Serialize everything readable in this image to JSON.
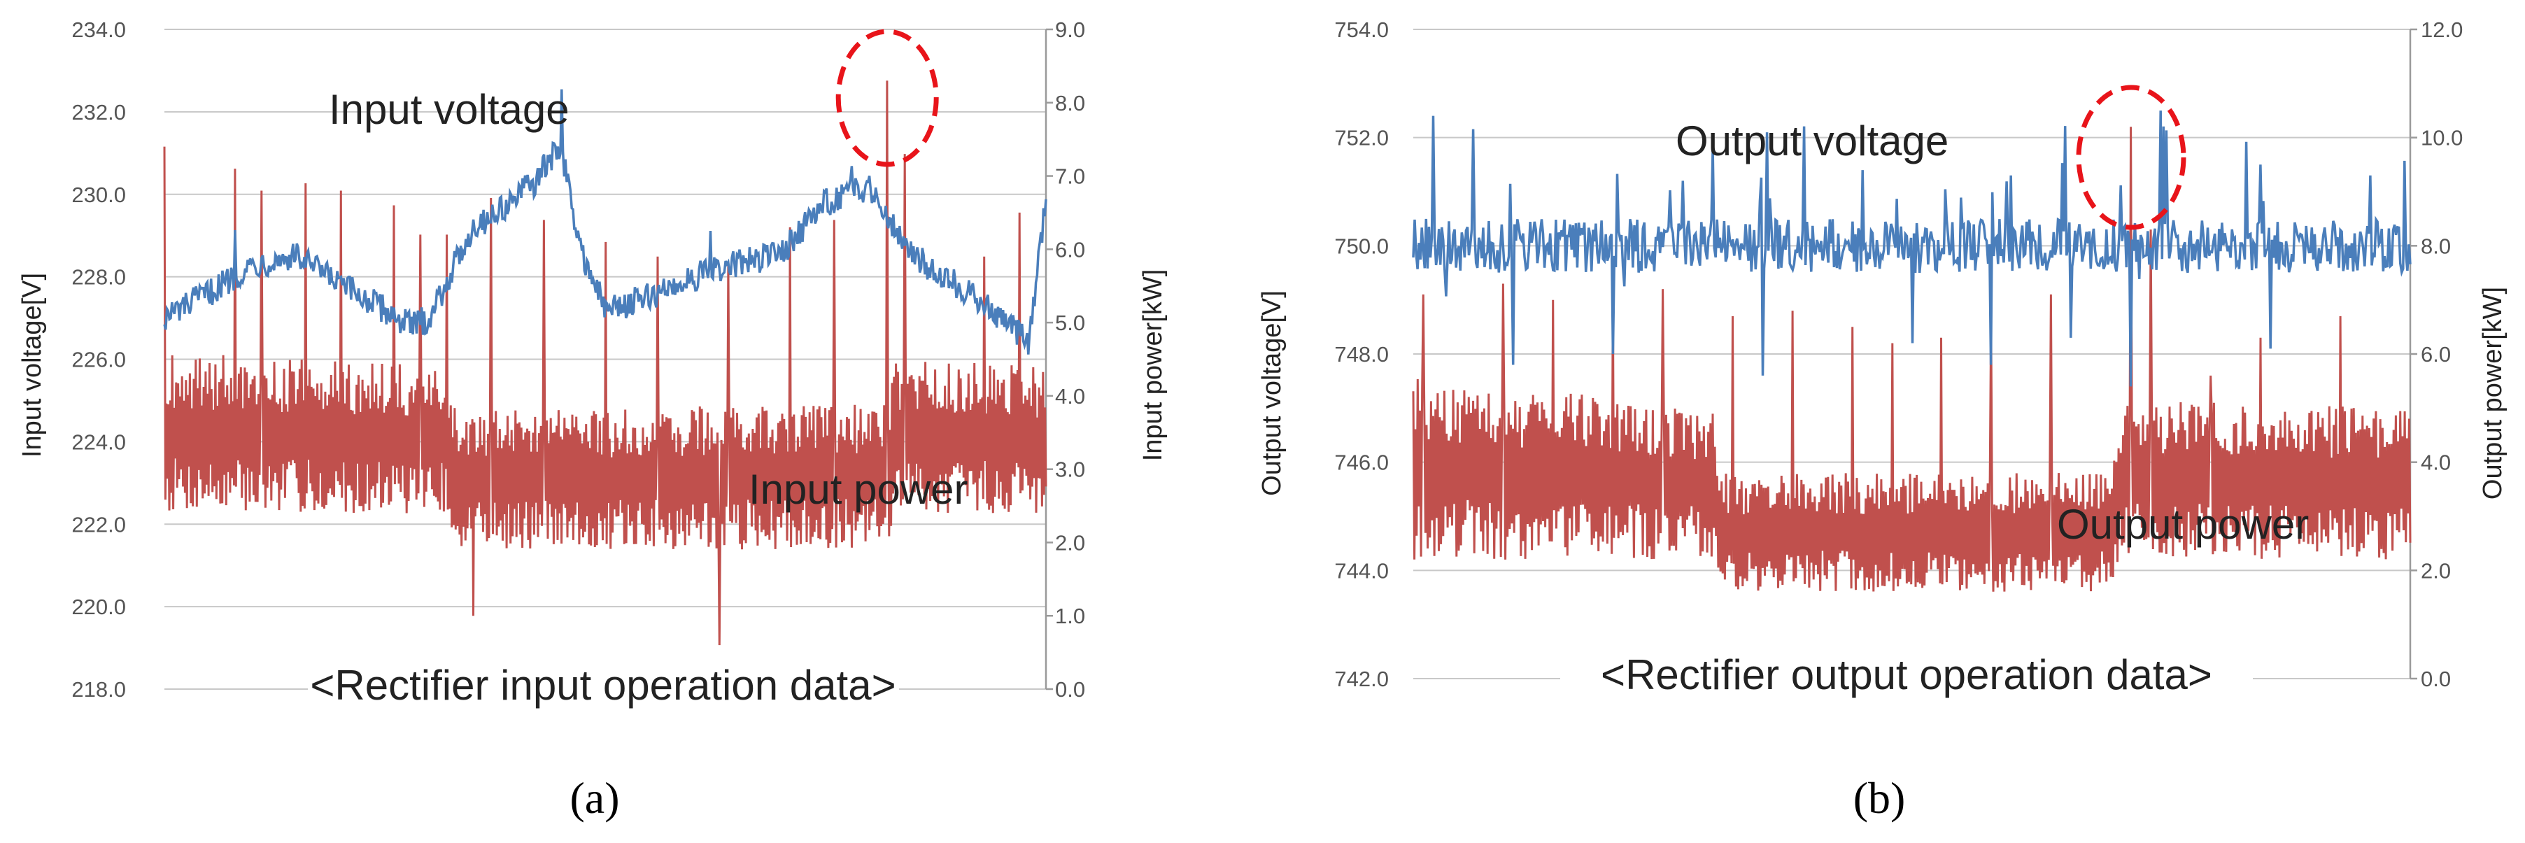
{
  "chart_data": [
    {
      "id": "a",
      "type": "line",
      "panel_label": "(a)",
      "subtitle": "<Rectifier input operation data>",
      "ylabel_left": "Input voltage[V]",
      "ylabel_right": "Input power[kW]",
      "y_left": {
        "lim": [
          218,
          234
        ],
        "ticks": [
          "218.0",
          "220.0",
          "222.0",
          "224.0",
          "226.0",
          "228.0",
          "230.0",
          "232.0",
          "234.0"
        ]
      },
      "y_right": {
        "lim": [
          0,
          9
        ],
        "ticks": [
          "0.0",
          "1.0",
          "2.0",
          "3.0",
          "4.0",
          "5.0",
          "6.0",
          "7.0",
          "8.0",
          "9.0"
        ]
      },
      "grid": true,
      "series": [
        {
          "name": "Input voltage",
          "axis": "left",
          "color": "#4a7ebb",
          "anchors": [
            [
              0,
              227.0
            ],
            [
              0.05,
              227.6
            ],
            [
              0.1,
              228.3
            ],
            [
              0.15,
              228.5
            ],
            [
              0.2,
              227.8
            ],
            [
              0.25,
              227.2
            ],
            [
              0.28,
              226.8
            ],
            [
              0.3,
              227.0
            ],
            [
              0.35,
              229.2
            ],
            [
              0.38,
              229.6
            ],
            [
              0.42,
              230.3
            ],
            [
              0.45,
              231.2
            ],
            [
              0.47,
              228.8
            ],
            [
              0.5,
              227.2
            ],
            [
              0.55,
              227.5
            ],
            [
              0.6,
              228.0
            ],
            [
              0.65,
              228.3
            ],
            [
              0.7,
              228.6
            ],
            [
              0.75,
              229.8
            ],
            [
              0.8,
              230.2
            ],
            [
              0.85,
              228.5
            ],
            [
              0.9,
              227.8
            ],
            [
              0.95,
              227.0
            ],
            [
              0.98,
              226.4
            ],
            [
              1.0,
              229.8
            ]
          ],
          "noise": 0.35,
          "spikes": [
            [
              0.08,
              1.0
            ],
            [
              0.45,
              1.2
            ],
            [
              0.62,
              0.8
            ],
            [
              0.78,
              0.6
            ]
          ]
        },
        {
          "name": "Input power",
          "axis": "right",
          "color": "#c0504d",
          "band_lo": [
            [
              0,
              2.4
            ],
            [
              0.32,
              2.4
            ],
            [
              0.33,
              1.9
            ],
            [
              0.82,
              1.9
            ],
            [
              0.83,
              2.4
            ],
            [
              1.0,
              2.4
            ]
          ],
          "band_hi": [
            [
              0,
              4.6
            ],
            [
              0.32,
              4.4
            ],
            [
              0.33,
              3.8
            ],
            [
              0.82,
              3.9
            ],
            [
              0.83,
              4.5
            ],
            [
              1.0,
              4.4
            ]
          ],
          "peaks": [
            [
              0.0,
              7.4
            ],
            [
              0.08,
              7.1
            ],
            [
              0.11,
              6.8
            ],
            [
              0.16,
              6.9
            ],
            [
              0.2,
              6.8
            ],
            [
              0.26,
              6.6
            ],
            [
              0.29,
              6.2
            ],
            [
              0.32,
              6.2
            ],
            [
              0.37,
              6.7
            ],
            [
              0.43,
              6.4
            ],
            [
              0.5,
              6.1
            ],
            [
              0.56,
              5.9
            ],
            [
              0.64,
              5.8
            ],
            [
              0.71,
              6.3
            ],
            [
              0.76,
              6.4
            ],
            [
              0.82,
              8.3
            ],
            [
              0.84,
              7.3
            ],
            [
              0.93,
              5.9
            ],
            [
              0.97,
              6.5
            ]
          ],
          "dips": [
            [
              0.35,
              1.0
            ],
            [
              0.43,
              1.0
            ],
            [
              0.63,
              0.6
            ]
          ]
        }
      ],
      "annotations": [
        {
          "text": "Input voltage"
        },
        {
          "text": "Input power"
        }
      ],
      "highlight_x": 0.82
    },
    {
      "id": "b",
      "type": "line",
      "panel_label": "(b)",
      "subtitle": "<Rectifier output operation data>",
      "ylabel_left": "Output voltage[V]",
      "ylabel_right": "Output power[kW]",
      "y_left": {
        "lim": [
          742,
          754
        ],
        "ticks": [
          "742.0",
          "744.0",
          "746.0",
          "748.0",
          "750.0",
          "752.0",
          "754.0"
        ]
      },
      "y_right": {
        "lim": [
          0,
          12
        ],
        "ticks": [
          "0.0",
          "2.0",
          "4.0",
          "6.0",
          "8.0",
          "10.0",
          "12.0"
        ]
      },
      "grid": true,
      "series": [
        {
          "name": "Output voltage",
          "axis": "left",
          "color": "#4a7ebb",
          "anchors": [
            [
              0,
              750.0
            ],
            [
              1.0,
              750.0
            ]
          ],
          "noise": 0.5,
          "spikes": [
            [
              0.02,
              752.4
            ],
            [
              0.1,
              751.3
            ],
            [
              0.2,
              751.6
            ],
            [
              0.3,
              751.8
            ],
            [
              0.45,
              751.4
            ],
            [
              0.6,
              751.3
            ],
            [
              0.75,
              752.5
            ],
            [
              0.85,
              751.5
            ],
            [
              0.96,
              751.3
            ]
          ],
          "drops": [
            [
              0.1,
              747.8
            ],
            [
              0.2,
              748.0
            ],
            [
              0.35,
              747.6
            ],
            [
              0.5,
              748.2
            ],
            [
              0.58,
              747.8
            ],
            [
              0.66,
              748.3
            ],
            [
              0.72,
              747.4
            ],
            [
              0.86,
              748.1
            ]
          ]
        },
        {
          "name": "Output power",
          "axis": "right",
          "color": "#c0504d",
          "band_lo": [
            [
              0,
              2.2
            ],
            [
              0.3,
              2.2
            ],
            [
              0.31,
              1.6
            ],
            [
              0.7,
              1.6
            ],
            [
              0.71,
              2.2
            ],
            [
              1.0,
              2.2
            ]
          ],
          "band_hi": [
            [
              0,
              5.6
            ],
            [
              0.3,
              5.0
            ],
            [
              0.31,
              3.8
            ],
            [
              0.7,
              3.8
            ],
            [
              0.71,
              5.2
            ],
            [
              1.0,
              5.0
            ]
          ],
          "peaks": [
            [
              0.01,
              7.1
            ],
            [
              0.09,
              7.3
            ],
            [
              0.14,
              7.0
            ],
            [
              0.2,
              7.1
            ],
            [
              0.25,
              7.2
            ],
            [
              0.32,
              6.7
            ],
            [
              0.38,
              6.8
            ],
            [
              0.44,
              6.5
            ],
            [
              0.48,
              6.2
            ],
            [
              0.53,
              6.3
            ],
            [
              0.58,
              6.7
            ],
            [
              0.64,
              7.1
            ],
            [
              0.72,
              10.2
            ],
            [
              0.74,
              8.3
            ],
            [
              0.8,
              5.6
            ],
            [
              0.85,
              6.3
            ],
            [
              0.93,
              6.7
            ]
          ],
          "dips": []
        }
      ],
      "annotations": [
        {
          "text": "Output voltage"
        },
        {
          "text": "Output power"
        }
      ],
      "highlight_x": 0.72
    }
  ]
}
